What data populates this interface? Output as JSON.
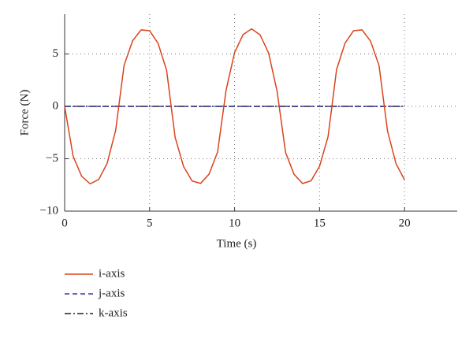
{
  "chart_data": {
    "type": "line",
    "xlabel": "Time (s)",
    "ylabel": "Force (N)",
    "x": [
      0,
      0.5,
      1,
      1.5,
      2,
      2.5,
      3,
      3.5,
      4,
      4.5,
      5,
      5.5,
      6,
      6.5,
      7,
      7.5,
      8,
      8.5,
      9,
      9.5,
      10,
      10.5,
      11,
      11.5,
      12,
      12.5,
      13,
      13.5,
      14,
      14.5,
      15,
      15.5,
      16,
      16.5,
      17,
      17.5,
      18,
      18.5,
      19,
      19.5,
      20
    ],
    "series": [
      {
        "name": "i-axis",
        "color": "#d9441c",
        "dash": "none",
        "values": [
          0,
          -4.76,
          -6.67,
          -7.39,
          -6.99,
          -5.44,
          -2.29,
          3.94,
          6.26,
          7.3,
          7.22,
          6.01,
          3.44,
          -2.95,
          -5.75,
          -7.12,
          -7.35,
          -6.46,
          -4.35,
          1.56,
          5.14,
          6.85,
          7.4,
          6.83,
          5.1,
          1.45,
          -4.4,
          -6.49,
          -7.36,
          -7.1,
          -5.71,
          -2.88,
          3.51,
          6.04,
          7.22,
          7.3,
          6.23,
          3.89,
          -2.37,
          -5.48,
          -7.01
        ]
      },
      {
        "name": "j-axis",
        "color": "#3a3aa0",
        "dash": "6 4",
        "values": [
          0,
          0,
          0,
          0,
          0,
          0,
          0,
          0,
          0,
          0,
          0,
          0,
          0,
          0,
          0,
          0,
          0,
          0,
          0,
          0,
          0,
          0,
          0,
          0,
          0,
          0,
          0,
          0,
          0,
          0,
          0,
          0,
          0,
          0,
          0,
          0,
          0,
          0,
          0,
          0,
          0
        ]
      },
      {
        "name": "k-axis",
        "color": "#222222",
        "dash": "8 3 2 3",
        "values": [
          0,
          0,
          0,
          0,
          0,
          0,
          0,
          0,
          0,
          0,
          0,
          0,
          0,
          0,
          0,
          0,
          0,
          0,
          0,
          0,
          0,
          0,
          0,
          0,
          0,
          0,
          0,
          0,
          0,
          0,
          0,
          0,
          0,
          0,
          0,
          0,
          0,
          0,
          0,
          0,
          0
        ]
      }
    ],
    "xlim": [
      0,
      23.1
    ],
    "xticks": [
      0,
      5,
      10,
      15,
      20
    ],
    "ylim": [
      -10,
      8.8
    ],
    "yticks": [
      {
        "value": -10,
        "label": "−10"
      },
      {
        "value": -5,
        "label": "−5"
      },
      0,
      5
    ],
    "grid": true
  }
}
